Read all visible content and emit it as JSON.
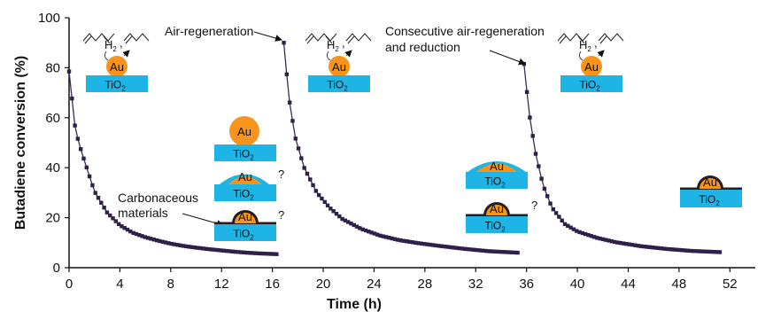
{
  "chart_data": {
    "type": "scatter",
    "xlabel": "Time (h)",
    "ylabel": "Butadiene conversion (%)",
    "xlim": [
      0,
      54
    ],
    "ylim": [
      0,
      100
    ],
    "xticks": [
      0,
      4,
      8,
      12,
      16,
      20,
      24,
      28,
      32,
      36,
      40,
      44,
      48,
      52
    ],
    "yticks": [
      0,
      20,
      40,
      60,
      80,
      100
    ],
    "grid": false,
    "marker_color": "#2e2048",
    "line_color": "#3a2c58",
    "series": [
      {
        "segment": 1,
        "x": [
          0,
          0.5,
          1.0,
          2.0,
          3.0,
          4.0,
          5.0,
          6.0,
          7.0,
          8.0,
          9.0,
          10.0,
          11.0,
          12.0,
          13.0,
          14.0,
          15.0,
          16.4
        ],
        "y": [
          78.5,
          55,
          46,
          30.5,
          22,
          17,
          14,
          12.2,
          10.8,
          9.6,
          8.7,
          8.0,
          7.4,
          6.9,
          6.4,
          6.0,
          5.7,
          5.4
        ]
      },
      {
        "segment": 2,
        "x": [
          16.9,
          17.3,
          17.8,
          18.5,
          19.5,
          20.5,
          21.5,
          23.0,
          24.5,
          26.0,
          27.5,
          29.0,
          31.0,
          33.0,
          35.3
        ],
        "y": [
          90,
          68,
          52,
          40,
          30,
          24,
          19.5,
          15.5,
          12.8,
          11.0,
          9.8,
          8.8,
          7.6,
          6.6,
          6.0
        ]
      },
      {
        "segment": 3,
        "x": [
          35.8,
          36.2,
          36.7,
          37.3,
          38.0,
          39.0,
          40.0,
          41.5,
          43.0,
          45.0,
          47.0,
          49.0,
          51.3
        ],
        "y": [
          81.5,
          62,
          46,
          33,
          24,
          17.5,
          14.5,
          12.0,
          10.2,
          8.6,
          7.5,
          6.7,
          6.2
        ]
      }
    ],
    "annotations": [
      "Air-regeneration",
      "Consecutive air-regeneration",
      "and reduction",
      "Carbonaceous",
      "materials"
    ]
  },
  "schematic": {
    "au": "Au",
    "tio2_main": "TiO",
    "tio2_sub": "2",
    "h2_main": "H",
    "h2_sub": "2",
    "question": "?",
    "colors": {
      "gold": "#F7941D",
      "blue": "#1EB4E6",
      "carbon": "#231F20"
    }
  }
}
